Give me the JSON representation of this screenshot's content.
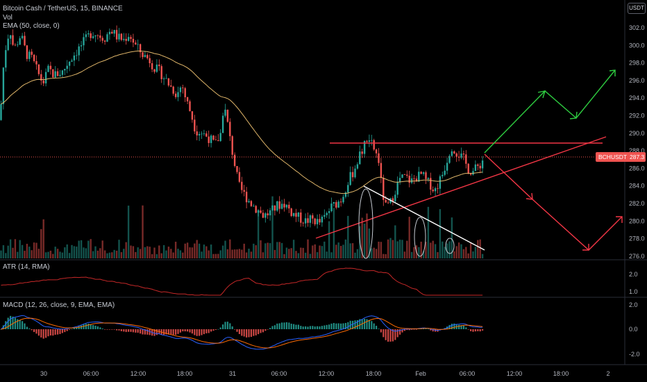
{
  "header": {
    "title": "Bitcoin Cash / TetherUS, 15, BINANCE",
    "vol_label": "Vol",
    "ema_label": "EMA (50, close, 0)",
    "currency_button": "USDT"
  },
  "indicators": {
    "atr_label": "ATR (14, RMA)",
    "macd_label": "MACD (12, 26, close, 9, EMA, EMA)"
  },
  "price_badge": {
    "symbol": "BCHUSDT",
    "value": "287.3"
  },
  "colors": {
    "up": "#26a69a",
    "down": "#ef5350",
    "ema": "#e0b66a",
    "green_arrow": "#2ecc40",
    "red_lines": "#f23645",
    "white_line": "#ffffff",
    "atr": "#c62828",
    "macd": "#2962ff",
    "signal": "#ff6d00"
  },
  "chart_data": [
    {
      "type": "candlestick",
      "pane": "price",
      "y_axis": {
        "ticks": [
          "302.0",
          "300.0",
          "298.0",
          "296.0",
          "294.0",
          "292.0",
          "290.0",
          "288.0",
          "286.0",
          "284.0",
          "282.0",
          "280.0",
          "278.0",
          "276.0"
        ],
        "ylim": [
          275.5,
          303.5
        ]
      },
      "x_axis": {
        "ticks": [
          "30",
          "06:00",
          "12:00",
          "18:00",
          "31",
          "06:00",
          "12:00",
          "18:00",
          "Feb",
          "06:00",
          "12:00",
          "18:00",
          "2"
        ]
      },
      "last_price": 287.3,
      "ema_period": 50,
      "price_path": [
        [
          0,
          291.5
        ],
        [
          6,
          298.8
        ],
        [
          14,
          302.0
        ],
        [
          20,
          299.5
        ],
        [
          30,
          301.2
        ],
        [
          38,
          299.0
        ],
        [
          46,
          298.5
        ],
        [
          55,
          296.8
        ],
        [
          62,
          295.7
        ],
        [
          70,
          297.3
        ],
        [
          78,
          296.6
        ],
        [
          90,
          297.0
        ],
        [
          100,
          298.3
        ],
        [
          112,
          299.5
        ],
        [
          122,
          300.5
        ],
        [
          132,
          301.5
        ],
        [
          140,
          301.3
        ],
        [
          150,
          300.8
        ],
        [
          160,
          301.8
        ],
        [
          168,
          301.0
        ],
        [
          178,
          300.6
        ],
        [
          186,
          301.3
        ],
        [
          195,
          300.0
        ],
        [
          205,
          299.0
        ],
        [
          215,
          298.4
        ],
        [
          222,
          297.5
        ],
        [
          230,
          297.0
        ],
        [
          238,
          296.2
        ],
        [
          245,
          295.4
        ],
        [
          255,
          294.4
        ],
        [
          262,
          295.6
        ],
        [
          268,
          293.8
        ],
        [
          275,
          292.3
        ],
        [
          282,
          290.3
        ],
        [
          292,
          290.0
        ],
        [
          302,
          289.4
        ],
        [
          310,
          288.6
        ],
        [
          318,
          290.0
        ],
        [
          322,
          293.2
        ],
        [
          326,
          292.0
        ],
        [
          332,
          289.0
        ],
        [
          338,
          286.5
        ],
        [
          344,
          284.0
        ],
        [
          352,
          283.0
        ],
        [
          362,
          282.0
        ],
        [
          372,
          281.2
        ],
        [
          380,
          280.6
        ],
        [
          390,
          281.0
        ],
        [
          400,
          281.8
        ],
        [
          410,
          282.0
        ],
        [
          420,
          281.0
        ],
        [
          430,
          280.4
        ],
        [
          440,
          280.0
        ],
        [
          450,
          280.2
        ],
        [
          460,
          279.8
        ],
        [
          468,
          280.4
        ],
        [
          476,
          281.5
        ],
        [
          484,
          282.0
        ],
        [
          492,
          282.5
        ],
        [
          500,
          284.3
        ],
        [
          508,
          285.5
        ],
        [
          516,
          287.0
        ],
        [
          524,
          288.5
        ],
        [
          532,
          289.2
        ],
        [
          540,
          288.0
        ],
        [
          546,
          286.8
        ],
        [
          550,
          283.5
        ],
        [
          556,
          281.5
        ],
        [
          562,
          282.0
        ],
        [
          568,
          283.3
        ],
        [
          576,
          284.8
        ],
        [
          584,
          285.0
        ],
        [
          592,
          284.5
        ],
        [
          600,
          285.0
        ],
        [
          608,
          285.3
        ],
        [
          614,
          284.5
        ],
        [
          620,
          284.2
        ],
        [
          626,
          283.4
        ],
        [
          632,
          284.4
        ],
        [
          638,
          285.5
        ],
        [
          644,
          287.0
        ],
        [
          650,
          288.6
        ],
        [
          656,
          288.0
        ],
        [
          662,
          287.5
        ],
        [
          668,
          287.0
        ],
        [
          674,
          286.0
        ],
        [
          680,
          285.6
        ],
        [
          686,
          286.0
        ],
        [
          692,
          286.5
        ],
        [
          698,
          287.3
        ]
      ]
    },
    {
      "type": "line",
      "pane": "atr",
      "name": "ATR",
      "y_axis": {
        "ticks": [
          "2.0",
          "1.0"
        ]
      },
      "last_value": 1.0
    },
    {
      "type": "line+histogram",
      "pane": "macd",
      "series": [
        {
          "name": "MACD"
        },
        {
          "name": "Signal"
        }
      ],
      "y_axis": {
        "ticks": [
          "2.0",
          "0.0",
          "-2.0"
        ]
      }
    }
  ]
}
